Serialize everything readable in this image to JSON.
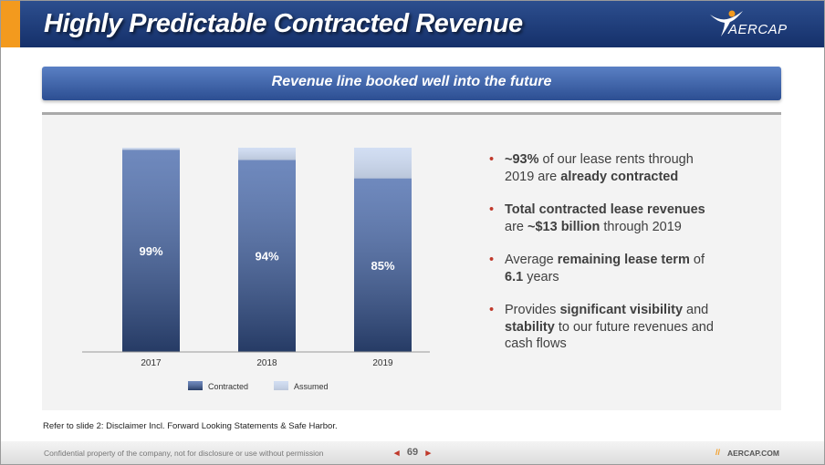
{
  "header": {
    "title": "Highly Predictable Contracted Revenue",
    "logo": "AERCAP"
  },
  "subtitle": "Revenue line booked well into the future",
  "chart_data": {
    "type": "stacked-bar",
    "categories": [
      "2017",
      "2018",
      "2019"
    ],
    "series": [
      {
        "name": "Contracted",
        "color": "#3f62a8",
        "values": [
          99,
          94,
          85
        ],
        "value_labels": [
          "99%",
          "94%",
          "85%"
        ]
      },
      {
        "name": "Assumed",
        "color": "#cfdcf2",
        "values": [
          1,
          6,
          15
        ]
      }
    ],
    "ylim": [
      0,
      100
    ],
    "legend": "bottom"
  },
  "bullets": [
    {
      "runs": [
        {
          "text": "~93%",
          "bold": true
        },
        {
          "text": " of our lease rents through 2019 are ",
          "bold": false
        },
        {
          "text": "already contracted",
          "bold": true
        }
      ]
    },
    {
      "runs": [
        {
          "text": "Total contracted lease revenues",
          "bold": true
        },
        {
          "text": " are ",
          "bold": false
        },
        {
          "text": "~$13 billion",
          "bold": true
        },
        {
          "text": " through 2019",
          "bold": false
        }
      ]
    },
    {
      "runs": [
        {
          "text": "Average ",
          "bold": false
        },
        {
          "text": "remaining lease term",
          "bold": true
        },
        {
          "text": " of ",
          "bold": false
        },
        {
          "text": "6.1",
          "bold": true
        },
        {
          "text": " years",
          "bold": false
        }
      ]
    },
    {
      "runs": [
        {
          "text": "Provides ",
          "bold": false
        },
        {
          "text": "significant visibility",
          "bold": true
        },
        {
          "text": " and ",
          "bold": false
        },
        {
          "text": "stability",
          "bold": true
        },
        {
          "text": " to our future revenues and cash flows",
          "bold": false
        }
      ]
    }
  ],
  "footnote": "Refer to slide 2: Disclaimer Incl. Forward Looking Statements & Safe Harbor.",
  "footer": {
    "confidential": "Confidential property of the company, not for disclosure or use without permission",
    "page": "69",
    "site": "AERCAP.COM"
  }
}
